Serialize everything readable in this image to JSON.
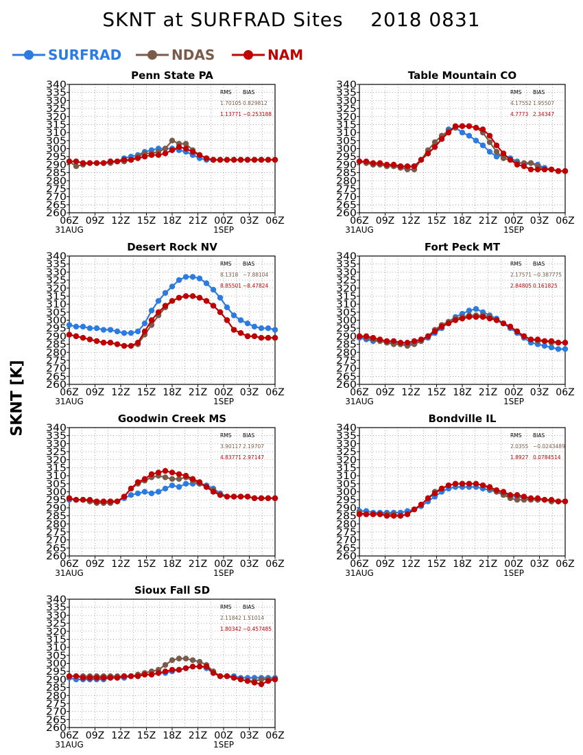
{
  "title": "SKNT at SURFRAD Sites    2018 0831",
  "y_axis_title": "SKNT [K]",
  "legend": [
    {
      "name": "SURFRAD",
      "color": "#2b7be0"
    },
    {
      "name": "NDAS",
      "color": "#7a5a48"
    },
    {
      "name": "NAM",
      "color": "#c00000"
    }
  ],
  "chart_data": [
    {
      "type": "line",
      "title": "Penn State PA",
      "x_ticks": [
        "06Z",
        "09Z",
        "12Z",
        "15Z",
        "18Z",
        "21Z",
        "00Z",
        "03Z",
        "06Z"
      ],
      "date_labels": [
        "31AUG",
        "1SEP"
      ],
      "ylim": [
        260,
        340
      ],
      "y_ticks": [
        260,
        265,
        270,
        275,
        280,
        285,
        290,
        295,
        300,
        305,
        310,
        315,
        320,
        325,
        330,
        335,
        340
      ],
      "grid": true,
      "stats": {
        "headers": [
          "RMS",
          "BIAS"
        ],
        "rows": [
          [
            "1.70105",
            "0.829812"
          ],
          [
            "1.13771",
            "−0.253188"
          ]
        ]
      },
      "series": [
        {
          "name": "SURFRAD",
          "values": [
            292,
            292,
            291,
            291,
            291,
            291,
            292,
            292,
            294,
            295,
            296,
            298,
            299,
            300,
            300,
            300,
            299,
            298,
            296,
            294,
            293,
            293,
            293,
            293,
            293,
            293,
            293,
            293,
            293,
            293,
            293
          ]
        },
        {
          "name": "NDAS",
          "values": [
            292,
            289,
            290,
            291,
            291,
            291,
            291,
            292,
            292,
            293,
            295,
            297,
            297,
            298,
            300,
            305,
            303,
            303,
            299,
            296,
            294,
            293,
            293,
            293,
            293,
            293,
            293,
            293,
            293,
            293,
            293
          ]
        },
        {
          "name": "NAM",
          "values": [
            292,
            292,
            291,
            291,
            291,
            291,
            292,
            292,
            293,
            293,
            294,
            295,
            296,
            296,
            297,
            299,
            301,
            300,
            298,
            296,
            294,
            293,
            293,
            293,
            293,
            293,
            293,
            293,
            293,
            293,
            293
          ]
        }
      ]
    },
    {
      "type": "line",
      "title": "Table Mountain CO",
      "x_ticks": [
        "06Z",
        "09Z",
        "12Z",
        "15Z",
        "18Z",
        "21Z",
        "00Z",
        "03Z",
        "06Z"
      ],
      "date_labels": [
        "31AUG",
        "1SEP"
      ],
      "ylim": [
        260,
        340
      ],
      "y_ticks": [
        260,
        265,
        270,
        275,
        280,
        285,
        290,
        295,
        300,
        305,
        310,
        315,
        320,
        325,
        330,
        335,
        340
      ],
      "grid": true,
      "stats": {
        "headers": [
          "RMS",
          "BIAS"
        ],
        "rows": [
          [
            "4.17552",
            "1.95507"
          ],
          [
            "4.7773",
            "2.34347"
          ]
        ]
      },
      "series": [
        {
          "name": "SURFRAD",
          "values": [
            292,
            291,
            290,
            290,
            289,
            289,
            289,
            288,
            289,
            293,
            297,
            301,
            306,
            312,
            313,
            310,
            308,
            305,
            302,
            298,
            295,
            296,
            294,
            292,
            290,
            291,
            290,
            288,
            287,
            286,
            286
          ]
        },
        {
          "name": "NDAS",
          "values": [
            292,
            291,
            290,
            290,
            289,
            289,
            288,
            287,
            287,
            293,
            299,
            304,
            308,
            311,
            313,
            314,
            314,
            313,
            310,
            304,
            298,
            294,
            293,
            291,
            291,
            291,
            289,
            287,
            287,
            286,
            286
          ]
        },
        {
          "name": "NAM",
          "values": [
            292,
            292,
            291,
            291,
            290,
            290,
            289,
            289,
            289,
            293,
            297,
            301,
            306,
            310,
            314,
            314,
            314,
            313,
            312,
            308,
            302,
            297,
            293,
            290,
            289,
            287,
            287,
            287,
            287,
            286,
            286
          ]
        }
      ]
    },
    {
      "type": "line",
      "title": "Desert Rock NV",
      "x_ticks": [
        "06Z",
        "09Z",
        "12Z",
        "15Z",
        "18Z",
        "21Z",
        "00Z",
        "03Z",
        "06Z"
      ],
      "date_labels": [
        "31AUG",
        "1SEP"
      ],
      "ylim": [
        260,
        340
      ],
      "y_ticks": [
        260,
        265,
        270,
        275,
        280,
        285,
        290,
        295,
        300,
        305,
        310,
        315,
        320,
        325,
        330,
        335,
        340
      ],
      "grid": true,
      "stats": {
        "headers": [
          "RMS",
          "BIAS"
        ],
        "rows": [
          [
            "8.1318",
            "−7.88104"
          ],
          [
            "8.85501",
            "−8.47824"
          ]
        ]
      },
      "series": [
        {
          "name": "SURFRAD",
          "values": [
            297,
            296,
            296,
            295,
            295,
            294,
            294,
            293,
            292,
            292,
            293,
            298,
            306,
            312,
            317,
            321,
            325,
            327,
            327,
            326,
            323,
            319,
            314,
            308,
            303,
            300,
            298,
            296,
            295,
            295,
            294
          ]
        },
        {
          "name": "NDAS",
          "values": [
            291,
            290,
            289,
            288,
            287,
            286,
            286,
            285,
            284,
            284,
            285,
            291,
            297,
            303,
            308,
            312,
            314,
            315,
            315,
            314,
            312,
            309,
            305,
            300,
            294,
            292,
            290,
            290,
            289,
            289,
            289
          ]
        },
        {
          "name": "NAM",
          "values": [
            291,
            290,
            289,
            288,
            287,
            286,
            286,
            285,
            284,
            284,
            286,
            293,
            300,
            305,
            309,
            312,
            314,
            315,
            315,
            314,
            312,
            309,
            305,
            300,
            294,
            292,
            290,
            290,
            289,
            289,
            289
          ]
        }
      ]
    },
    {
      "type": "line",
      "title": "Fort Peck MT",
      "x_ticks": [
        "06Z",
        "09Z",
        "12Z",
        "15Z",
        "18Z",
        "21Z",
        "00Z",
        "03Z",
        "06Z"
      ],
      "date_labels": [
        "31AUG",
        "1SEP"
      ],
      "ylim": [
        260,
        340
      ],
      "y_ticks": [
        260,
        265,
        270,
        275,
        280,
        285,
        290,
        295,
        300,
        305,
        310,
        315,
        320,
        325,
        330,
        335,
        340
      ],
      "grid": true,
      "stats": {
        "headers": [
          "RMS",
          "BIAS"
        ],
        "rows": [
          [
            "2.17571",
            "−0.387775"
          ],
          [
            "2.84805",
            "0.161825"
          ]
        ]
      },
      "series": [
        {
          "name": "SURFRAD",
          "values": [
            289,
            288,
            287,
            287,
            286,
            286,
            285,
            285,
            286,
            287,
            289,
            292,
            295,
            299,
            302,
            304,
            306,
            307,
            305,
            303,
            301,
            298,
            295,
            292,
            289,
            286,
            285,
            284,
            283,
            282,
            282
          ]
        },
        {
          "name": "NDAS",
          "values": [
            290,
            289,
            288,
            287,
            286,
            285,
            285,
            284,
            285,
            287,
            290,
            294,
            297,
            299,
            301,
            302,
            303,
            303,
            303,
            302,
            300,
            298,
            296,
            293,
            290,
            288,
            287,
            287,
            286,
            286,
            286
          ]
        },
        {
          "name": "NAM",
          "values": [
            290,
            290,
            289,
            288,
            287,
            287,
            286,
            286,
            287,
            288,
            290,
            293,
            296,
            298,
            300,
            301,
            302,
            302,
            302,
            301,
            300,
            298,
            296,
            293,
            290,
            288,
            288,
            287,
            287,
            286,
            286
          ]
        }
      ]
    },
    {
      "type": "line",
      "title": "Goodwin Creek MS",
      "x_ticks": [
        "06Z",
        "09Z",
        "12Z",
        "15Z",
        "18Z",
        "21Z",
        "00Z",
        "03Z",
        "06Z"
      ],
      "date_labels": [
        "31AUG",
        "1SEP"
      ],
      "ylim": [
        260,
        340
      ],
      "y_ticks": [
        260,
        265,
        270,
        275,
        280,
        285,
        290,
        295,
        300,
        305,
        310,
        315,
        320,
        325,
        330,
        335,
        340
      ],
      "grid": true,
      "stats": {
        "headers": [
          "RMS",
          "BIAS"
        ],
        "rows": [
          [
            "3.90117",
            "2.19707"
          ],
          [
            "4.83771",
            "2.97147"
          ]
        ]
      },
      "series": [
        {
          "name": "SURFRAD",
          "values": [
            295,
            295,
            295,
            294,
            294,
            294,
            294,
            294,
            296,
            298,
            299,
            300,
            299,
            300,
            302,
            304,
            303,
            305,
            305,
            305,
            304,
            302,
            299,
            297,
            297,
            297,
            297,
            296,
            296,
            296,
            296
          ]
        },
        {
          "name": "NDAS",
          "values": [
            296,
            295,
            295,
            294,
            293,
            293,
            293,
            294,
            297,
            302,
            305,
            307,
            309,
            310,
            309,
            308,
            308,
            309,
            307,
            305,
            303,
            301,
            298,
            297,
            297,
            297,
            297,
            296,
            296,
            296,
            296
          ]
        },
        {
          "name": "NAM",
          "values": [
            296,
            295,
            295,
            295,
            294,
            294,
            294,
            294,
            297,
            302,
            306,
            308,
            311,
            312,
            313,
            312,
            311,
            310,
            308,
            306,
            303,
            300,
            298,
            297,
            297,
            297,
            297,
            296,
            296,
            296,
            296
          ]
        }
      ]
    },
    {
      "type": "line",
      "title": "Bondville IL",
      "x_ticks": [
        "06Z",
        "09Z",
        "12Z",
        "15Z",
        "18Z",
        "21Z",
        "00Z",
        "03Z",
        "06Z"
      ],
      "date_labels": [
        "31AUG",
        "1SEP"
      ],
      "ylim": [
        260,
        340
      ],
      "y_ticks": [
        260,
        265,
        270,
        275,
        280,
        285,
        290,
        295,
        300,
        305,
        310,
        315,
        320,
        325,
        330,
        335,
        340
      ],
      "grid": true,
      "stats": {
        "headers": [
          "RMS",
          "BIAS"
        ],
        "rows": [
          [
            "2.0355",
            "−0.0243489"
          ],
          [
            "1.8927",
            "0.0784514"
          ]
        ]
      },
      "series": [
        {
          "name": "SURFRAD",
          "values": [
            288,
            288,
            287,
            287,
            287,
            287,
            287,
            288,
            289,
            291,
            294,
            297,
            300,
            302,
            303,
            303,
            303,
            303,
            302,
            301,
            300,
            299,
            297,
            297,
            296,
            295,
            295,
            295,
            294,
            294,
            294
          ]
        },
        {
          "name": "NDAS",
          "values": [
            287,
            286,
            286,
            286,
            286,
            286,
            285,
            286,
            289,
            292,
            296,
            300,
            302,
            304,
            305,
            305,
            305,
            305,
            304,
            302,
            300,
            298,
            296,
            295,
            295,
            295,
            295,
            295,
            294,
            294,
            294
          ]
        },
        {
          "name": "NAM",
          "values": [
            286,
            286,
            286,
            286,
            285,
            285,
            285,
            286,
            289,
            292,
            296,
            299,
            302,
            304,
            305,
            305,
            305,
            305,
            304,
            303,
            301,
            300,
            298,
            298,
            297,
            296,
            296,
            295,
            295,
            294,
            294
          ]
        }
      ]
    },
    {
      "type": "line",
      "title": "Sioux Fall SD",
      "x_ticks": [
        "06Z",
        "09Z",
        "12Z",
        "15Z",
        "18Z",
        "21Z",
        "00Z",
        "03Z",
        "06Z"
      ],
      "date_labels": [
        "31AUG",
        "1SEP"
      ],
      "ylim": [
        260,
        340
      ],
      "y_ticks": [
        260,
        265,
        270,
        275,
        280,
        285,
        290,
        295,
        300,
        305,
        310,
        315,
        320,
        325,
        330,
        335,
        340
      ],
      "grid": true,
      "stats": {
        "headers": [
          "RMS",
          "BIAS"
        ],
        "rows": [
          [
            "2.11842",
            "1.51014"
          ],
          [
            "1.80342",
            "−0.457485"
          ]
        ]
      },
      "series": [
        {
          "name": "SURFRAD",
          "values": [
            291,
            290,
            290,
            290,
            290,
            290,
            291,
            291,
            291,
            292,
            292,
            293,
            293,
            294,
            294,
            295,
            296,
            297,
            298,
            298,
            297,
            294,
            292,
            292,
            292,
            291,
            291,
            291,
            291,
            291,
            291
          ]
        },
        {
          "name": "NDAS",
          "values": [
            292,
            292,
            292,
            292,
            292,
            292,
            292,
            292,
            292,
            292,
            293,
            294,
            295,
            296,
            299,
            302,
            303,
            303,
            302,
            301,
            299,
            295,
            292,
            292,
            291,
            290,
            289,
            289,
            290,
            290,
            290
          ]
        },
        {
          "name": "NAM",
          "values": [
            292,
            292,
            291,
            291,
            291,
            291,
            291,
            291,
            292,
            292,
            292,
            293,
            293,
            294,
            295,
            296,
            296,
            297,
            298,
            298,
            298,
            294,
            292,
            292,
            291,
            290,
            289,
            288,
            287,
            289,
            290
          ]
        }
      ]
    }
  ]
}
